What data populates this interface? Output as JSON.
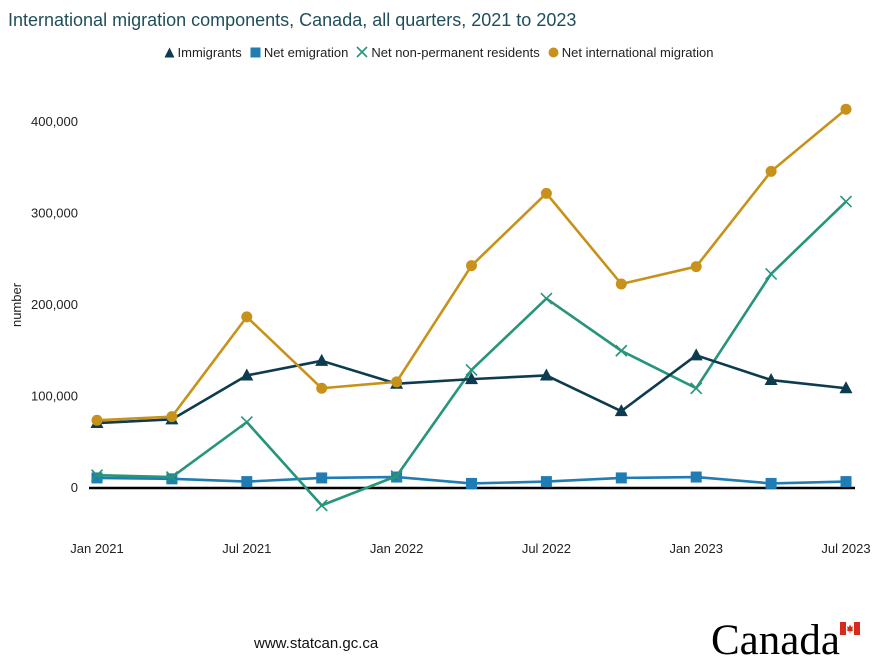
{
  "chart_data": {
    "type": "line",
    "title": "International migration components, Canada, all quarters, 2021 to 2023",
    "ylabel": "number",
    "xlabel": "",
    "x": [
      "Jan 2021",
      "Apr 2021",
      "Jul 2021",
      "Oct 2021",
      "Jan 2022",
      "Apr 2022",
      "Jul 2022",
      "Oct 2022",
      "Jan 2023",
      "Apr 2023",
      "Jul 2023"
    ],
    "x_tick_labels": [
      "Jan 2021",
      "Jul 2021",
      "Jan 2022",
      "Jul 2022",
      "Jan 2023",
      "Jul 2023"
    ],
    "ylim": [
      -20000,
      420000
    ],
    "y_ticks": [
      0,
      100000,
      200000,
      300000,
      400000
    ],
    "y_tick_labels": [
      "0",
      "100,000",
      "200,000",
      "300,000",
      "400,000"
    ],
    "grid": false,
    "legend_position": "top-center",
    "series": [
      {
        "name": "Immigrants",
        "color": "#0d3b4f",
        "marker": "triangle",
        "values": [
          71000,
          75000,
          123000,
          139000,
          114000,
          119000,
          123000,
          84000,
          145000,
          118000,
          109000
        ]
      },
      {
        "name": "Net emigration",
        "color": "#1f7db4",
        "marker": "square",
        "values": [
          11000,
          10000,
          7000,
          11000,
          12000,
          5000,
          7000,
          11000,
          12000,
          5000,
          7000
        ]
      },
      {
        "name": "Net non-permanent residents",
        "color": "#26957a",
        "marker": "x",
        "values": [
          14000,
          12000,
          72000,
          -19000,
          13000,
          129000,
          207000,
          150000,
          109000,
          234000,
          313000
        ]
      },
      {
        "name": "Net international migration",
        "color": "#c8921a",
        "marker": "circle",
        "values": [
          74000,
          78000,
          187000,
          109000,
          116000,
          243000,
          322000,
          223000,
          242000,
          346000,
          414000
        ]
      }
    ]
  },
  "footer": {
    "source": "www.statcan.gc.ca",
    "wordmark": "Canada",
    "flag_color": "#d52b1e"
  }
}
